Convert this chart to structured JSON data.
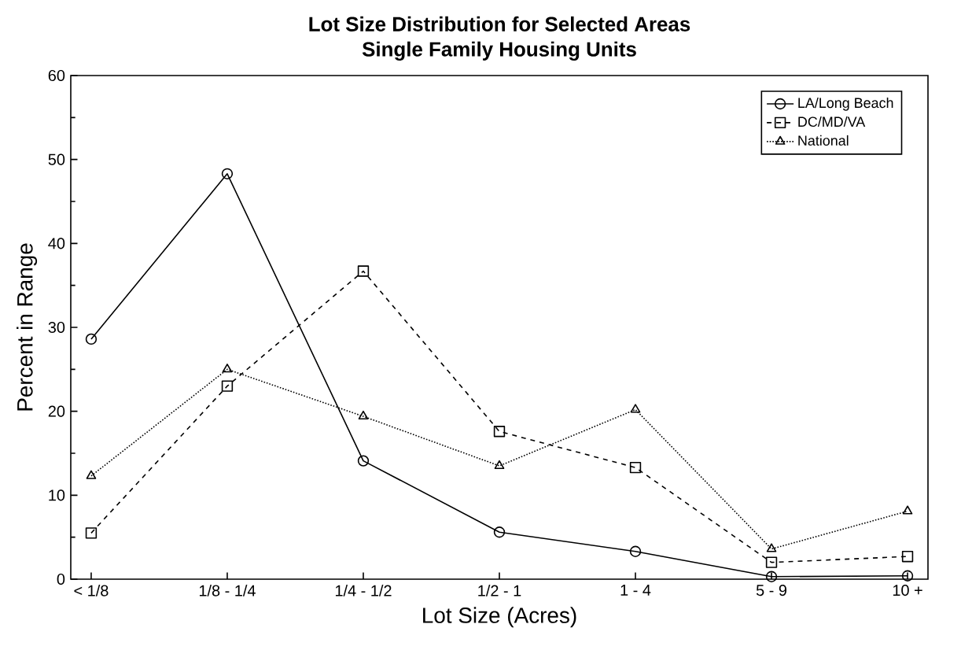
{
  "chart_data": {
    "type": "line",
    "title": "Lot Size Distribution for Selected Areas",
    "subtitle": "Single Family Housing Units",
    "xlabel": "Lot Size (Acres)",
    "ylabel": "Percent in Range",
    "categories": [
      "< 1/8",
      "1/8 - 1/4",
      "1/4 - 1/2",
      "1/2 - 1",
      "1 - 4",
      "5 - 9",
      "10 +"
    ],
    "series": [
      {
        "name": "LA/Long Beach",
        "color": "#000000",
        "marker": "circle",
        "line_style": "solid",
        "values": [
          28.6,
          48.3,
          14.1,
          5.6,
          3.3,
          0.3,
          0.4
        ]
      },
      {
        "name": "DC/MD/VA",
        "color": "#000000",
        "marker": "square",
        "line_style": "dashed",
        "values": [
          5.5,
          23.0,
          36.7,
          17.6,
          13.3,
          2.0,
          2.7
        ]
      },
      {
        "name": "National",
        "color": "#000000",
        "marker": "triangle",
        "line_style": "dotted",
        "values": [
          12.3,
          25.0,
          19.4,
          13.5,
          20.2,
          3.6,
          8.1
        ]
      }
    ],
    "ylim": [
      0,
      60
    ],
    "yticks": [
      0,
      10,
      20,
      30,
      40,
      50,
      60
    ],
    "grid": false,
    "legend": "top right"
  }
}
